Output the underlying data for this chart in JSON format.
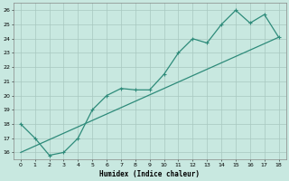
{
  "xlabel": "Humidex (Indice chaleur)",
  "x_values": [
    0,
    1,
    2,
    3,
    4,
    5,
    6,
    7,
    8,
    9,
    10,
    11,
    12,
    13,
    14,
    15,
    16,
    17,
    18
  ],
  "y_curve": [
    18,
    17,
    15.8,
    16,
    17,
    19,
    20,
    20.5,
    20.4,
    20.4,
    21.5,
    23,
    24,
    23.7,
    25,
    26,
    25.1,
    25.7,
    24.1
  ],
  "trend_x": [
    0,
    18
  ],
  "trend_y": [
    16.0,
    24.1
  ],
  "ylim": [
    15.5,
    26.5
  ],
  "xlim": [
    -0.5,
    18.5
  ],
  "yticks": [
    16,
    17,
    18,
    19,
    20,
    21,
    22,
    23,
    24,
    25,
    26
  ],
  "xticks": [
    0,
    1,
    2,
    3,
    4,
    5,
    6,
    7,
    8,
    9,
    10,
    11,
    12,
    13,
    14,
    15,
    16,
    17,
    18
  ],
  "line_color": "#2E8B7A",
  "bg_color": "#C8E8E0",
  "grid_color": "#A8C8C0",
  "text_color": "#000000",
  "font_family": "monospace"
}
